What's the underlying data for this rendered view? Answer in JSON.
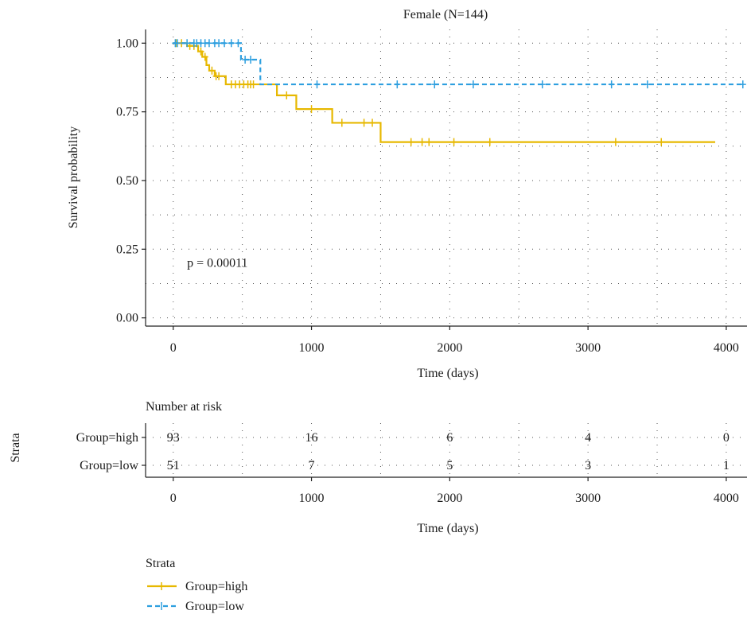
{
  "chart_data": [
    {
      "type": "line",
      "subtype": "kaplan-meier",
      "title": "Female (N=144)",
      "xlabel": "Time (days)",
      "ylabel": "Survival probability",
      "xlim": [
        -200,
        4150
      ],
      "ylim": [
        -0.03,
        1.05
      ],
      "xticks": [
        0,
        1000,
        2000,
        3000,
        4000
      ],
      "xtick_labels": [
        "0",
        "1000",
        "2000",
        "3000",
        "4000"
      ],
      "yticks": [
        0,
        0.25,
        0.5,
        0.75,
        1.0
      ],
      "ytick_labels": [
        "0.00",
        "0.25",
        "0.50",
        "0.75",
        "1.00"
      ],
      "grid": true,
      "annotation": "p = 0.00011",
      "annotation_pos": {
        "x": 100,
        "y": 0.2
      },
      "series": [
        {
          "name": "Group=high",
          "color": "#E7B800",
          "dash": "solid",
          "steps": [
            [
              0,
              1.0
            ],
            [
              100,
              0.99
            ],
            [
              180,
              0.97
            ],
            [
              210,
              0.95
            ],
            [
              240,
              0.92
            ],
            [
              260,
              0.9
            ],
            [
              300,
              0.88
            ],
            [
              380,
              0.85
            ],
            [
              750,
              0.81
            ],
            [
              890,
              0.76
            ],
            [
              1150,
              0.71
            ],
            [
              1500,
              0.64
            ],
            [
              3920,
              0.64
            ]
          ],
          "censors": [
            [
              20,
              1.0
            ],
            [
              60,
              1.0
            ],
            [
              120,
              0.99
            ],
            [
              150,
              0.99
            ],
            [
              200,
              0.97
            ],
            [
              230,
              0.95
            ],
            [
              280,
              0.9
            ],
            [
              310,
              0.88
            ],
            [
              330,
              0.88
            ],
            [
              420,
              0.85
            ],
            [
              450,
              0.85
            ],
            [
              480,
              0.85
            ],
            [
              510,
              0.85
            ],
            [
              540,
              0.85
            ],
            [
              560,
              0.85
            ],
            [
              580,
              0.85
            ],
            [
              820,
              0.81
            ],
            [
              1000,
              0.76
            ],
            [
              1220,
              0.71
            ],
            [
              1380,
              0.71
            ],
            [
              1440,
              0.71
            ],
            [
              1720,
              0.64
            ],
            [
              1800,
              0.64
            ],
            [
              1850,
              0.64
            ],
            [
              2030,
              0.64
            ],
            [
              2290,
              0.64
            ],
            [
              3200,
              0.64
            ],
            [
              3530,
              0.64
            ]
          ]
        },
        {
          "name": "Group=low",
          "color": "#2E9FDF",
          "dash": "dashed",
          "steps": [
            [
              0,
              1.0
            ],
            [
              490,
              0.94
            ],
            [
              630,
              0.85
            ],
            [
              4120,
              0.85
            ]
          ],
          "censors": [
            [
              15,
              1.0
            ],
            [
              30,
              1.0
            ],
            [
              100,
              1.0
            ],
            [
              150,
              1.0
            ],
            [
              170,
              1.0
            ],
            [
              200,
              1.0
            ],
            [
              230,
              1.0
            ],
            [
              260,
              1.0
            ],
            [
              300,
              1.0
            ],
            [
              330,
              1.0
            ],
            [
              370,
              1.0
            ],
            [
              420,
              1.0
            ],
            [
              470,
              1.0
            ],
            [
              520,
              0.94
            ],
            [
              560,
              0.94
            ],
            [
              1040,
              0.85
            ],
            [
              1620,
              0.85
            ],
            [
              1890,
              0.85
            ],
            [
              2170,
              0.85
            ],
            [
              2670,
              0.85
            ],
            [
              3170,
              0.85
            ],
            [
              3430,
              0.85
            ],
            [
              4120,
              0.85
            ]
          ]
        }
      ]
    },
    {
      "type": "table",
      "title": "Number at risk",
      "ylabel": "Strata",
      "xlabel": "Time (days)",
      "xticks": [
        0,
        1000,
        2000,
        3000,
        4000
      ],
      "xtick_labels": [
        "0",
        "1000",
        "2000",
        "3000",
        "4000"
      ],
      "rows": [
        {
          "name": "Group=high",
          "values": [
            "93",
            "16",
            "6",
            "4",
            "0"
          ]
        },
        {
          "name": "Group=low",
          "values": [
            "51",
            "7",
            "5",
            "3",
            "1"
          ]
        }
      ]
    }
  ],
  "legend": {
    "title": "Strata",
    "items": [
      {
        "label": "Group=high",
        "color": "#E7B800",
        "dash": "solid"
      },
      {
        "label": "Group=low",
        "color": "#2E9FDF",
        "dash": "dashed"
      }
    ]
  }
}
